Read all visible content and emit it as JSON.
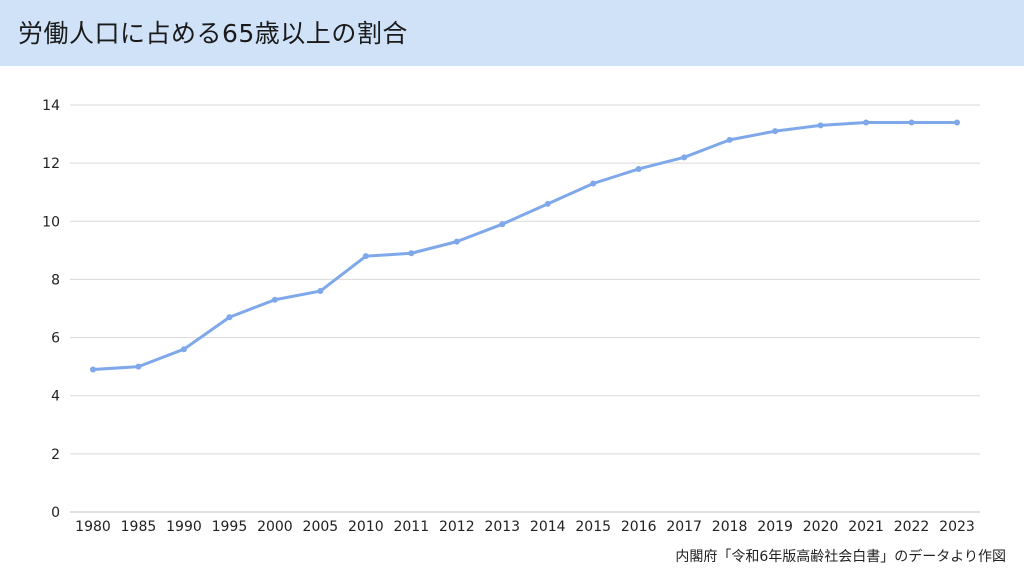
{
  "title": "労働人口に占める65歳以上の割合",
  "source": "内閣府「令和6年版高齢社会白書」のデータより作図",
  "colors": {
    "title_bg": "#cfe2f7",
    "line": "#7ea8ea",
    "grid": "#d9d9d9",
    "text": "#222222"
  },
  "chart_data": {
    "type": "line",
    "title": "労働人口に占める65歳以上の割合",
    "xlabel": "",
    "ylabel": "",
    "categories": [
      "1980",
      "1985",
      "1990",
      "1995",
      "2000",
      "2005",
      "2010",
      "2011",
      "2012",
      "2013",
      "2014",
      "2015",
      "2016",
      "2017",
      "2018",
      "2019",
      "2020",
      "2021",
      "2022",
      "2023"
    ],
    "series": [
      {
        "values": [
          4.9,
          5.0,
          5.6,
          6.7,
          7.3,
          7.6,
          8.8,
          8.9,
          9.3,
          9.9,
          10.6,
          11.3,
          11.8,
          12.2,
          12.8,
          13.1,
          13.3,
          13.4,
          13.4,
          13.4
        ]
      }
    ],
    "ylim": [
      0,
      14
    ],
    "yticks": [
      "0",
      "2",
      "4",
      "6",
      "8",
      "10",
      "12",
      "14"
    ],
    "grid": true,
    "legend": "none"
  }
}
